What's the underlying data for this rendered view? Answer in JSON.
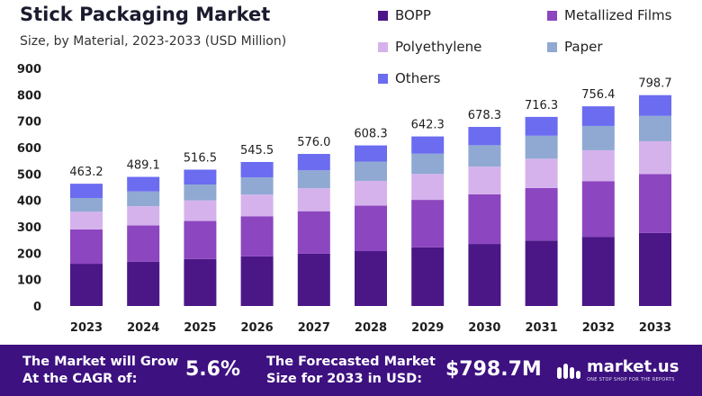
{
  "header": {
    "title": "Stick Packaging Market",
    "subtitle": "Size, by Material, 2023-2033 (USD Million)"
  },
  "colors": {
    "BOPP": "#4b1787",
    "Metallized Films": "#8c46bf",
    "Polyethylene": "#d6b2ec",
    "Paper": "#8fa9d2",
    "Others": "#6b6cf0",
    "footer_bg": "#3d1180"
  },
  "chart_data": {
    "type": "bar",
    "stacked": true,
    "title": "Stick Packaging Market",
    "subtitle": "Size, by Material, 2023-2033 (USD Million)",
    "categories": [
      "2023",
      "2024",
      "2025",
      "2026",
      "2027",
      "2028",
      "2029",
      "2030",
      "2031",
      "2032",
      "2033"
    ],
    "series": [
      {
        "name": "BOPP",
        "values": [
          160,
          168,
          178,
          188,
          198,
          208,
          222,
          235,
          248,
          262,
          277
        ]
      },
      {
        "name": "Metallized Films",
        "values": [
          130,
          137,
          144,
          152,
          161,
          172,
          180,
          188,
          199,
          211,
          223
        ]
      },
      {
        "name": "Polyethylene",
        "values": [
          67,
          73,
          78,
          82,
          87,
          94,
          98,
          105,
          111,
          117,
          124
        ]
      },
      {
        "name": "Paper",
        "values": [
          52,
          56,
          60,
          65,
          68,
          73,
          77,
          81,
          87,
          92,
          96
        ]
      },
      {
        "name": "Others",
        "values": [
          54.2,
          55.1,
          56.5,
          58.5,
          62.0,
          61.3,
          65.3,
          69.3,
          71.3,
          74.4,
          78.7
        ]
      }
    ],
    "totals": [
      463.2,
      489.1,
      516.5,
      545.5,
      576.0,
      608.3,
      642.3,
      678.3,
      716.3,
      756.4,
      798.7
    ],
    "total_labels": [
      "463.2",
      "489.1",
      "516.5",
      "545.5",
      "576.0",
      "608.3",
      "642.3",
      "678.3",
      "716.3",
      "756.4",
      "798.7"
    ],
    "y_ticks": [
      0,
      100,
      200,
      300,
      400,
      500,
      600,
      700,
      800,
      900
    ],
    "ylim": [
      0,
      900
    ],
    "xlabel": "",
    "ylabel": "",
    "legend_position": "top-right",
    "grid": false
  },
  "footer": {
    "cagr_label_line1": "The Market will Grow",
    "cagr_label_line2": "At the CAGR of:",
    "cagr_value": "5.6%",
    "forecast_label_line1": "The Forecasted Market",
    "forecast_label_line2": "Size for 2033 in USD:",
    "forecast_value": "$798.7M",
    "brand": "market.us",
    "brand_tagline": "ONE STOP SHOP FOR THE REPORTS"
  }
}
